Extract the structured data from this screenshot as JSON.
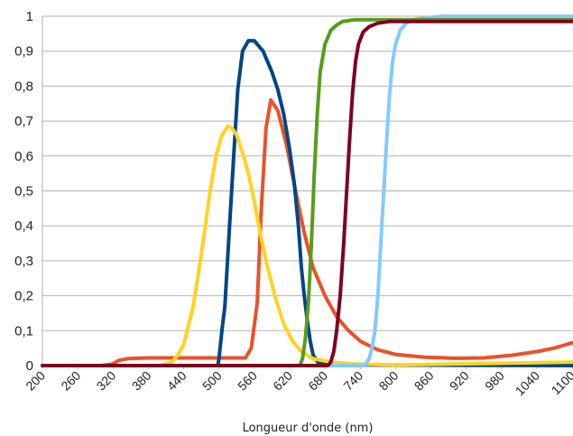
{
  "chart_data": {
    "type": "line",
    "title": "",
    "xlabel": "Longueur d'onde (nm)",
    "ylabel": "",
    "xlim": [
      200,
      1100
    ],
    "ylim": [
      0,
      1
    ],
    "grid": true,
    "legend": "none",
    "x_ticks": [
      "200",
      "260",
      "320",
      "380",
      "440",
      "500",
      "560",
      "620",
      "680",
      "740",
      "800",
      "860",
      "920",
      "980",
      "1040",
      "1100"
    ],
    "y_ticks": [
      "0",
      "0,1",
      "0,2",
      "0,3",
      "0,4",
      "0,5",
      "0,6",
      "0,7",
      "0,8",
      "0,9",
      "1"
    ],
    "series": [
      {
        "color": "#e8522a",
        "points": [
          [
            200,
            0
          ],
          [
            300,
            0
          ],
          [
            320,
            0.005
          ],
          [
            330,
            0.015
          ],
          [
            345,
            0.02
          ],
          [
            380,
            0.022
          ],
          [
            460,
            0.022
          ],
          [
            545,
            0.022
          ],
          [
            555,
            0.05
          ],
          [
            565,
            0.18
          ],
          [
            572,
            0.45
          ],
          [
            580,
            0.68
          ],
          [
            588,
            0.76
          ],
          [
            600,
            0.73
          ],
          [
            615,
            0.63
          ],
          [
            630,
            0.5
          ],
          [
            645,
            0.38
          ],
          [
            660,
            0.28
          ],
          [
            680,
            0.2
          ],
          [
            700,
            0.14
          ],
          [
            720,
            0.1
          ],
          [
            740,
            0.07
          ],
          [
            770,
            0.045
          ],
          [
            800,
            0.032
          ],
          [
            850,
            0.024
          ],
          [
            900,
            0.021
          ],
          [
            950,
            0.022
          ],
          [
            1000,
            0.03
          ],
          [
            1040,
            0.04
          ],
          [
            1070,
            0.05
          ],
          [
            1100,
            0.065
          ]
        ]
      },
      {
        "color": "#004586",
        "points": [
          [
            200,
            0
          ],
          [
            498,
            0
          ],
          [
            500,
            0.02
          ],
          [
            505,
            0.1
          ],
          [
            510,
            0.17
          ],
          [
            518,
            0.4
          ],
          [
            525,
            0.6
          ],
          [
            532,
            0.79
          ],
          [
            540,
            0.9
          ],
          [
            550,
            0.93
          ],
          [
            560,
            0.93
          ],
          [
            575,
            0.9
          ],
          [
            590,
            0.84
          ],
          [
            600,
            0.79
          ],
          [
            610,
            0.72
          ],
          [
            620,
            0.62
          ],
          [
            628,
            0.52
          ],
          [
            635,
            0.4
          ],
          [
            640,
            0.28
          ],
          [
            645,
            0.2
          ],
          [
            650,
            0.13
          ],
          [
            655,
            0.07
          ],
          [
            660,
            0.03
          ],
          [
            668,
            0.01
          ],
          [
            680,
            0.005
          ],
          [
            720,
            0.002
          ],
          [
            1100,
            0
          ]
        ]
      },
      {
        "color": "#ffd320",
        "points": [
          [
            200,
            0
          ],
          [
            400,
            0
          ],
          [
            420,
            0.01
          ],
          [
            430,
            0.03
          ],
          [
            440,
            0.06
          ],
          [
            455,
            0.16
          ],
          [
            465,
            0.26
          ],
          [
            475,
            0.38
          ],
          [
            485,
            0.5
          ],
          [
            495,
            0.6
          ],
          [
            505,
            0.66
          ],
          [
            515,
            0.685
          ],
          [
            522,
            0.68
          ],
          [
            530,
            0.66
          ],
          [
            540,
            0.61
          ],
          [
            550,
            0.55
          ],
          [
            560,
            0.47
          ],
          [
            570,
            0.38
          ],
          [
            580,
            0.3
          ],
          [
            595,
            0.2
          ],
          [
            610,
            0.12
          ],
          [
            625,
            0.07
          ],
          [
            640,
            0.04
          ],
          [
            660,
            0.02
          ],
          [
            690,
            0.01
          ],
          [
            730,
            0.005
          ],
          [
            800,
            0.002
          ],
          [
            1100,
            0.01
          ]
        ]
      },
      {
        "color": "#83caff",
        "points": [
          [
            200,
            0
          ],
          [
            748,
            0
          ],
          [
            755,
            0.02
          ],
          [
            760,
            0.05
          ],
          [
            765,
            0.1
          ],
          [
            770,
            0.2
          ],
          [
            775,
            0.35
          ],
          [
            780,
            0.5
          ],
          [
            785,
            0.65
          ],
          [
            790,
            0.78
          ],
          [
            795,
            0.87
          ],
          [
            800,
            0.92
          ],
          [
            808,
            0.96
          ],
          [
            818,
            0.98
          ],
          [
            830,
            0.99
          ],
          [
            850,
            0.995
          ],
          [
            880,
            1
          ],
          [
            1100,
            1
          ]
        ]
      },
      {
        "color": "#579d1c",
        "points": [
          [
            200,
            0
          ],
          [
            637,
            0
          ],
          [
            642,
            0.02
          ],
          [
            647,
            0.08
          ],
          [
            652,
            0.18
          ],
          [
            657,
            0.35
          ],
          [
            662,
            0.55
          ],
          [
            667,
            0.72
          ],
          [
            672,
            0.84
          ],
          [
            680,
            0.92
          ],
          [
            690,
            0.96
          ],
          [
            700,
            0.975
          ],
          [
            710,
            0.985
          ],
          [
            730,
            0.99
          ],
          [
            800,
            0.99
          ],
          [
            1100,
            0.99
          ]
        ]
      },
      {
        "color": "#7e0021",
        "points": [
          [
            200,
            0
          ],
          [
            685,
            0
          ],
          [
            690,
            0.01
          ],
          [
            695,
            0.04
          ],
          [
            700,
            0.1
          ],
          [
            706,
            0.2
          ],
          [
            712,
            0.35
          ],
          [
            717,
            0.5
          ],
          [
            722,
            0.65
          ],
          [
            727,
            0.78
          ],
          [
            732,
            0.87
          ],
          [
            737,
            0.92
          ],
          [
            745,
            0.955
          ],
          [
            755,
            0.97
          ],
          [
            770,
            0.98
          ],
          [
            790,
            0.985
          ],
          [
            850,
            0.985
          ],
          [
            1100,
            0.985
          ]
        ]
      }
    ]
  }
}
